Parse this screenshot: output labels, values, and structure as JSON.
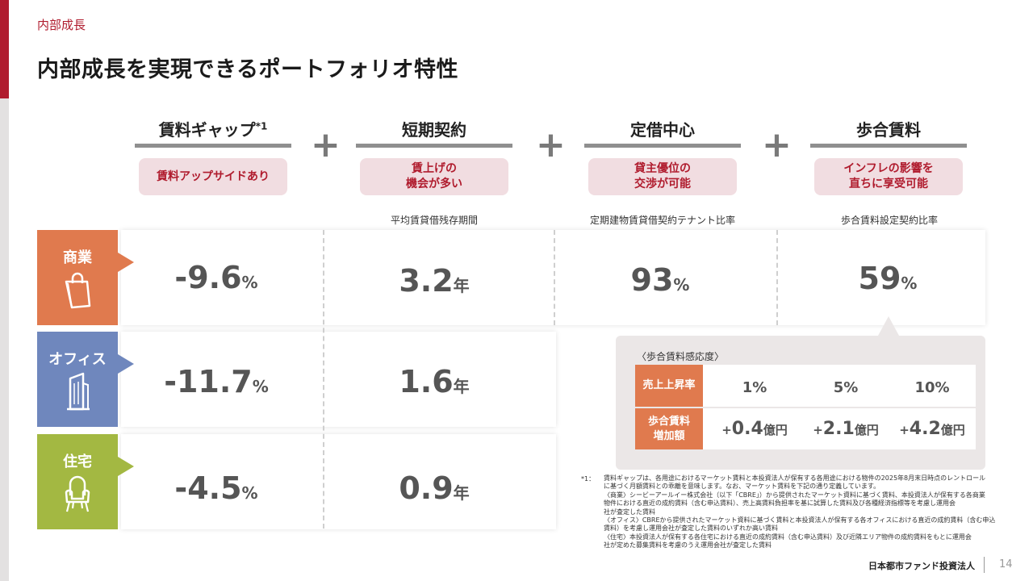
{
  "section_label": "内部成長",
  "page_title": "内部成長を実現できるポートフォリオ特性",
  "plus_sign": "+",
  "columns": [
    {
      "heading": "賃料ギャップ",
      "sup": "*1",
      "pill": "賃料アップサイドあり",
      "metric_label": ""
    },
    {
      "heading": "短期契約",
      "sup": "",
      "pill": "賃上げの\n機会が多い",
      "metric_label": "平均賃貸借残存期間"
    },
    {
      "heading": "定借中心",
      "sup": "",
      "pill": "貸主優位の\n交渉が可能",
      "metric_label": "定期建物賃貸借契約テナント比率"
    },
    {
      "heading": "歩合賃料",
      "sup": "",
      "pill": "インフレの影響を\n直ちに享受可能",
      "metric_label": "歩合賃料設定契約比率"
    }
  ],
  "sectors": [
    {
      "name": "商業",
      "icon": "shopping-bag-icon",
      "color": "#e07a4e",
      "values": [
        {
          "num": "-9.6",
          "unit": "%"
        },
        {
          "num": "3.2",
          "unit": "年"
        },
        {
          "num": "93",
          "unit": "%"
        },
        {
          "num": "59",
          "unit": "%"
        }
      ]
    },
    {
      "name": "オフィス",
      "icon": "office-building-icon",
      "color": "#6f87bd",
      "values": [
        {
          "num": "-11.7",
          "unit": "%"
        },
        {
          "num": "1.6",
          "unit": "年"
        }
      ]
    },
    {
      "name": "住宅",
      "icon": "armchair-icon",
      "color": "#a3b842",
      "values": [
        {
          "num": "-4.5",
          "unit": "%"
        },
        {
          "num": "0.9",
          "unit": "年"
        }
      ]
    }
  ],
  "sensitivity": {
    "title": "〈歩合賃料感応度〉",
    "row1_label": "売上上昇率",
    "row2_label": "歩合賃料\n増加額",
    "rates": [
      "1%",
      "5%",
      "10%"
    ],
    "increases": [
      {
        "sign": "+",
        "num": "0.4",
        "unit": "億円"
      },
      {
        "sign": "+",
        "num": "2.1",
        "unit": "億円"
      },
      {
        "sign": "+",
        "num": "4.2",
        "unit": "億円"
      }
    ]
  },
  "footnote": {
    "mark": "*1：",
    "lines": [
      "賃料ギャップは、各用途におけるマーケット賃料と本投資法人が保有する各用途における物件の2025年8月末日時点のレントロール",
      "に基づく月額賃料との乖離を意味します。なお、マーケット賃料を下記の通り定義しています。",
      "〈商業〉シービーアールイー株式会社（以下「CBRE」）から提供されたマーケット資料に基づく賃料、本投資法人が保有する各商業",
      "物件における直近の成約賃料（含む申込賃料）、売上高賃料負担率を基に試算した賃料及び各種経済指標等を考慮し運用会",
      "社が査定した賃料",
      "〈オフィス〉CBREから提供されたマーケット資料に基づく賃料と本投資法人が保有する各オフィスにおける直近の成約賃料（含む申込",
      "賃料）を考慮し運用会社が査定した賃料のいずれか高い賃料",
      "〈住宅〉本投資法人が保有する各住宅における直近の成約賃料（含む申込賃料）及び近隣エリア物件の成約賃料をもとに運用会",
      "社が定めた募集賃料を考慮のうえ運用会社が査定した賃料"
    ]
  },
  "company_name": "日本都市ファンド投資法人",
  "page_number": "14"
}
